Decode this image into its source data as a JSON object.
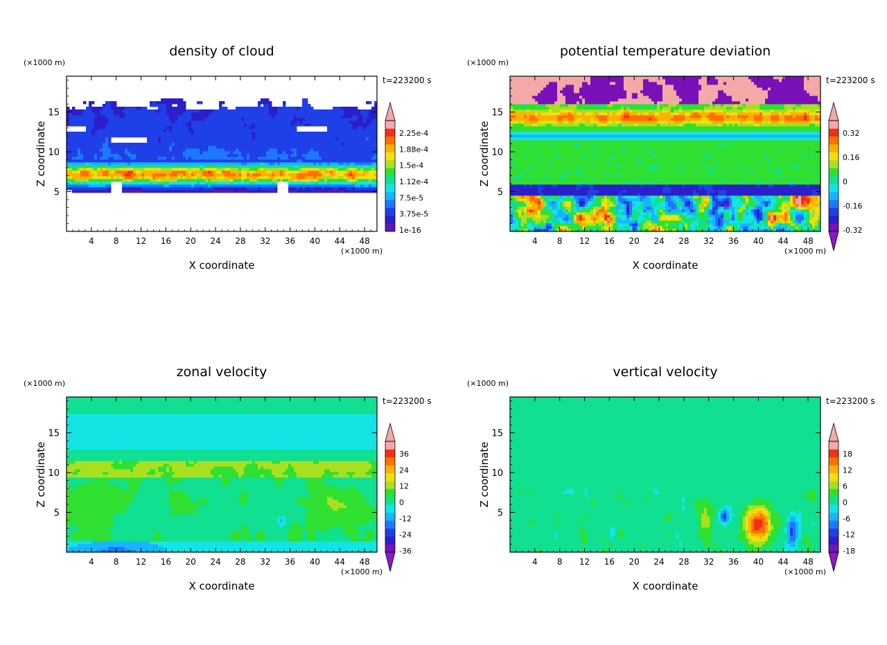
{
  "chart_data": [
    {
      "type": "heatmap",
      "title": "density of cloud",
      "xlabel": "X coordinate",
      "ylabel": "Z coordinate",
      "x_unit": "(×1000 m)",
      "y_unit": "(×1000 m)",
      "time_label": "t=223200 s",
      "xlim": [
        0,
        50
      ],
      "ylim": [
        0,
        19.5
      ],
      "xticks": [
        "4",
        "8",
        "12",
        "16",
        "20",
        "24",
        "28",
        "32",
        "36",
        "40",
        "44",
        "48"
      ],
      "yticks": [
        "5",
        "10",
        "15"
      ],
      "colorbar_labels": [
        "1e-16",
        "3.75e-5",
        "7.5e-5",
        "1.12e-4",
        "1.5e-4",
        "1.88e-4",
        "2.25e-4"
      ],
      "colorbar_colors": [
        "#5a1ab0",
        "#2a1fc8",
        "#1f3fe8",
        "#1e78ff",
        "#19b4ff",
        "#13e4e4",
        "#10e090",
        "#30e030",
        "#a8e020",
        "#f0e010",
        "#ffb000",
        "#ff7000",
        "#f03018",
        "#f4a8a8"
      ],
      "colorbar_extend": "max",
      "field": "cloud"
    },
    {
      "type": "heatmap",
      "title": "potential temperature deviation",
      "xlabel": "X coordinate",
      "ylabel": "Z coordinate",
      "x_unit": "(×1000 m)",
      "y_unit": "(×1000 m)",
      "time_label": "t=223200 s",
      "xlim": [
        0,
        50
      ],
      "ylim": [
        0,
        19.5
      ],
      "xticks": [
        "4",
        "8",
        "12",
        "16",
        "20",
        "24",
        "28",
        "32",
        "36",
        "40",
        "44",
        "48"
      ],
      "yticks": [
        "5",
        "10",
        "15"
      ],
      "colorbar_labels": [
        "-0.32",
        "-0.16",
        "0",
        "0.16",
        "0.32"
      ],
      "colorbar_colors": [
        "#7a10b8",
        "#2a1fc8",
        "#1f3fe8",
        "#1e78ff",
        "#19b4ff",
        "#13e4e4",
        "#10e090",
        "#30e030",
        "#a8e020",
        "#f0e010",
        "#ffb000",
        "#ff7000",
        "#f03018",
        "#f4a8a8"
      ],
      "colorbar_extend": "both",
      "field": "theta"
    },
    {
      "type": "heatmap",
      "title": "zonal velocity",
      "xlabel": "X coordinate",
      "ylabel": "Z coordinate",
      "x_unit": "(×1000 m)",
      "y_unit": "(×1000 m)",
      "time_label": "t=223200 s",
      "xlim": [
        0,
        50
      ],
      "ylim": [
        0,
        19.5
      ],
      "xticks": [
        "4",
        "8",
        "12",
        "16",
        "20",
        "24",
        "28",
        "32",
        "36",
        "40",
        "44",
        "48"
      ],
      "yticks": [
        "5",
        "10",
        "15"
      ],
      "colorbar_labels": [
        "-36",
        "-24",
        "-12",
        "0",
        "12",
        "24",
        "36"
      ],
      "colorbar_colors": [
        "#7a10b8",
        "#2a1fc8",
        "#1f3fe8",
        "#1e78ff",
        "#19b4ff",
        "#13e4e4",
        "#10e090",
        "#30e030",
        "#a8e020",
        "#f0e010",
        "#ffb000",
        "#ff7000",
        "#f03018",
        "#f4a8a8"
      ],
      "colorbar_extend": "both",
      "field": "u"
    },
    {
      "type": "heatmap",
      "title": "vertical velocity",
      "xlabel": "X coordinate",
      "ylabel": "Z coordinate",
      "x_unit": "(×1000 m)",
      "y_unit": "(×1000 m)",
      "time_label": "t=223200 s",
      "xlim": [
        0,
        50
      ],
      "ylim": [
        0,
        19.5
      ],
      "xticks": [
        "4",
        "8",
        "12",
        "16",
        "20",
        "24",
        "28",
        "32",
        "36",
        "40",
        "44",
        "48"
      ],
      "yticks": [
        "5",
        "10",
        "15"
      ],
      "colorbar_labels": [
        "-18",
        "-12",
        "-6",
        "0",
        "6",
        "12",
        "18"
      ],
      "colorbar_colors": [
        "#7a10b8",
        "#2a1fc8",
        "#1f3fe8",
        "#1e78ff",
        "#19b4ff",
        "#13e4e4",
        "#10e090",
        "#30e030",
        "#a8e020",
        "#f0e010",
        "#ffb000",
        "#ff7000",
        "#f03018",
        "#f4a8a8"
      ],
      "colorbar_extend": "both",
      "field": "w"
    }
  ]
}
